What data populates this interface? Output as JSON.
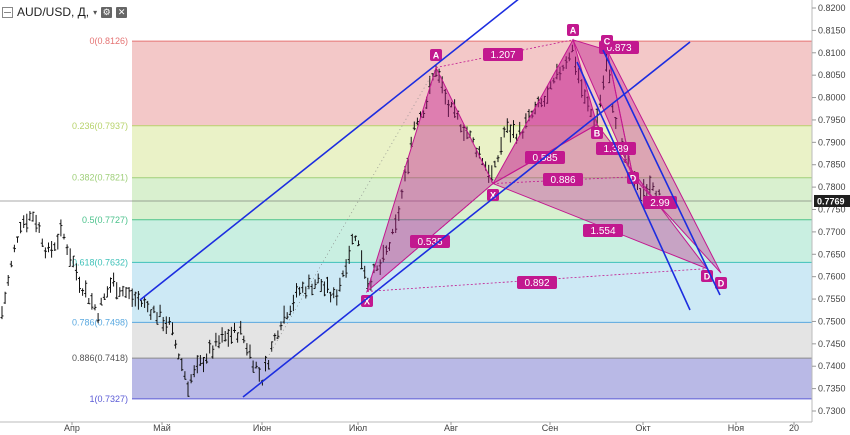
{
  "header": {
    "symbol": "AUD/USD, Д,",
    "caret": "▾",
    "icons": [
      "settings-icon",
      "close-icon"
    ]
  },
  "colors": {
    "bull_pattern": "#c2188f",
    "channel": "#1c2de0",
    "bar": "#111111",
    "price_label_bg": "#1f1f1f"
  },
  "chart_data": {
    "type": "bar",
    "instrument": "AUD/USD",
    "timeframe": "Д",
    "ylim": [
      0.73,
      0.821
    ],
    "y_ticks": [
      "0.8200",
      "0.8150",
      "0.8100",
      "0.8050",
      "0.8000",
      "0.7950",
      "0.7900",
      "0.7850",
      "0.7800",
      "0.7750",
      "0.7700",
      "0.7650",
      "0.7600",
      "0.7550",
      "0.7500",
      "0.7450",
      "0.7400",
      "0.7350",
      "0.7300"
    ],
    "x_ticks": [
      "Апр",
      "Май",
      "Июн",
      "Июл",
      "Авг",
      "Сен",
      "Окт",
      "Ноя",
      "20"
    ],
    "current_price": "0.7769",
    "fib_levels": [
      {
        "ratio": "0",
        "price": "0.8126",
        "label": "0(0.8126)",
        "color": "#e57373"
      },
      {
        "ratio": "0.236",
        "price": "0.7937",
        "label": "0.236(0.7937)",
        "color": "#b7d36b"
      },
      {
        "ratio": "0.382",
        "price": "0.7821",
        "label": "0.382(0.7821)",
        "color": "#9fcf7a"
      },
      {
        "ratio": "0.5",
        "price": "0.7727",
        "label": "0.5(0.7727)",
        "color": "#4cc28c"
      },
      {
        "ratio": "0.618",
        "price": "0.7632",
        "label": "0.618(0.7632)",
        "color": "#3ec1b8"
      },
      {
        "ratio": "0.786",
        "price": "0.7498",
        "label": "0.786(0.7498)",
        "color": "#5aa9e0"
      },
      {
        "ratio": "0.886",
        "price": "0.7418",
        "label": "0.886(0.7418)",
        "color": "#8a8a8a"
      },
      {
        "ratio": "1",
        "price": "0.7327",
        "label": "1(0.7327)",
        "color": "#5b5bd6"
      }
    ],
    "pattern_points": [
      {
        "label": "X",
        "price": 0.7567
      },
      {
        "label": "A",
        "price": 0.8067
      },
      {
        "label": "X",
        "price": 0.7808
      },
      {
        "label": "A",
        "price": 0.8129
      },
      {
        "label": "C",
        "price": 0.8106
      },
      {
        "label": "B",
        "price": 0.794
      },
      {
        "label": "D",
        "price": 0.7823
      },
      {
        "label": "D",
        "price": 0.7618
      },
      {
        "label": "D",
        "price": 0.7608
      }
    ],
    "ratio_labels": [
      "1.207",
      "0.873",
      "0.585",
      "1.389",
      "0.886",
      "2.99",
      "0.535",
      "1.554",
      "0.892"
    ]
  }
}
